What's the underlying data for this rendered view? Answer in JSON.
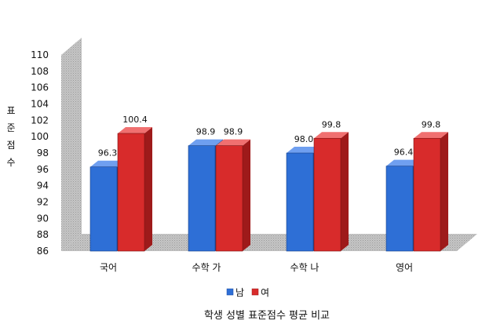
{
  "chart_data": {
    "type": "bar",
    "title": "",
    "categories": [
      "국어",
      "수학 가",
      "수학 나",
      "영어"
    ],
    "series": [
      {
        "name": "남",
        "values": [
          96.3,
          98.9,
          98.0,
          96.4
        ],
        "color": "#2e6fd6"
      },
      {
        "name": "여",
        "values": [
          100.4,
          98.9,
          99.8,
          99.8
        ],
        "color": "#d82b2b"
      }
    ],
    "value_labels": [
      [
        "96.3",
        "98.9",
        "98.0",
        "96.4"
      ],
      [
        "100.4",
        "98.9",
        "99.8",
        "99.8"
      ]
    ],
    "ylim": [
      86,
      110
    ],
    "yticks": [
      "86",
      "88",
      "90",
      "92",
      "94",
      "96",
      "98",
      "100",
      "102",
      "104",
      "106",
      "108",
      "110"
    ],
    "ylabel": "표준점수",
    "ylabel_chars": [
      "표",
      "준",
      "점",
      "수"
    ],
    "legend_position": "bottom",
    "style": "3d-clustered-bar"
  },
  "caption": "학생 성별 표준점수 평균 비교"
}
